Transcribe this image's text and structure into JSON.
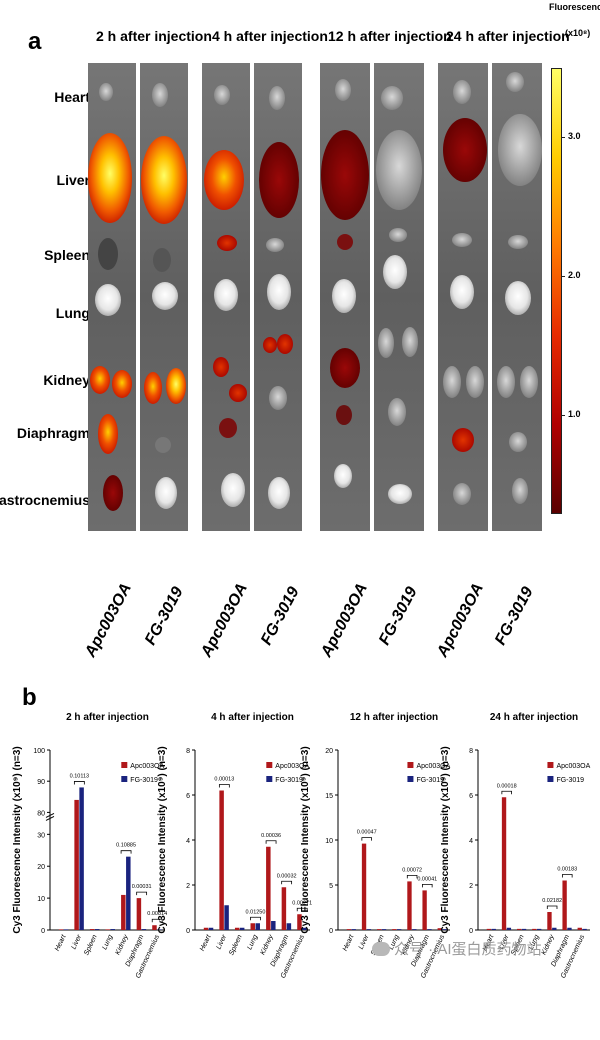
{
  "panel_a": {
    "letter": "a",
    "time_points": [
      "2 h after injection",
      "4 h after injection",
      "12 h after injection",
      "24 h after injection"
    ],
    "organs": [
      "Heart",
      "Liver",
      "Spleen",
      "Lung",
      "Kidney",
      "Diaphragm",
      "Gastrocnemius"
    ],
    "groups": [
      "Apc003OA",
      "FG-3019",
      "Apc003OA",
      "FG-3019",
      "Apc003OA",
      "FG-3019",
      "Apc003OA",
      "FG-3019"
    ],
    "colorbar": {
      "title": "Fluorescence",
      "unit": "(x10⁸)",
      "ticks": [
        "3.0",
        "2.0",
        "1.0"
      ],
      "tick_values": [
        3.0,
        2.0,
        1.0
      ],
      "range": [
        0.3,
        3.5
      ],
      "colors": [
        "#ffff66",
        "#ffcc00",
        "#ff7a00",
        "#e62a00",
        "#b00000",
        "#5a0000"
      ]
    }
  },
  "panel_b": {
    "letter": "b",
    "ylabel": "Cy3 Fluorescence Intensity (x10⁹) (n=3)",
    "legend": [
      "Apc003OA",
      "FG-3019"
    ],
    "series_colors": {
      "Apc003OA": "#b0181b",
      "FG-3019": "#1a237e"
    },
    "categories": [
      "Heart",
      "Liver",
      "Spleen",
      "Lung",
      "Kidney",
      "Diaphragm",
      "Gastrocnemius"
    ]
  },
  "chart_data": [
    {
      "type": "bar",
      "title": "2 h after injection",
      "ylabel": "Cy3 Fluorescence Intensity (x10⁹) (n=3)",
      "categories": [
        "Heart",
        "Liver",
        "Spleen",
        "Lung",
        "Kidney",
        "Diaphragm",
        "Gastrocnemius"
      ],
      "series": [
        {
          "name": "Apc003OA",
          "values": [
            0.2,
            84,
            0.3,
            0.2,
            11,
            10,
            1.5
          ]
        },
        {
          "name": "FG-3019",
          "values": [
            0.2,
            88,
            0.3,
            0.3,
            23,
            0.3,
            0.2
          ]
        }
      ],
      "ylim": [
        0,
        100
      ],
      "axis_break": [
        35,
        80
      ],
      "yticks": [
        0,
        10,
        20,
        30,
        80,
        90,
        100
      ],
      "annotations": [
        {
          "category": "Liver",
          "text": "0.10113"
        },
        {
          "category": "Kidney",
          "text": "0.10885"
        },
        {
          "category": "Diaphragm",
          "text": "0.00031"
        },
        {
          "category": "Gastrocnemius",
          "text": "0.00814"
        }
      ]
    },
    {
      "type": "bar",
      "title": "4 h after injection",
      "ylabel": "Cy3 Fluorescence Intensity (x10⁹) (n=3)",
      "categories": [
        "Heart",
        "Liver",
        "Spleen",
        "Lung",
        "Kidney",
        "Diaphragm",
        "Gastrocnemius"
      ],
      "series": [
        {
          "name": "Apc003OA",
          "values": [
            0.1,
            6.2,
            0.1,
            0.3,
            3.7,
            1.9,
            0.7
          ]
        },
        {
          "name": "FG-3019",
          "values": [
            0.1,
            1.1,
            0.1,
            0.3,
            0.4,
            0.3,
            0.1
          ]
        }
      ],
      "ylim": [
        0,
        8
      ],
      "yticks": [
        0,
        2,
        4,
        6,
        8
      ],
      "annotations": [
        {
          "category": "Liver",
          "text": "0.00013"
        },
        {
          "category": "Lung",
          "text": "0.01250"
        },
        {
          "category": "Kidney",
          "text": "0.00036"
        },
        {
          "category": "Diaphragm",
          "text": "0.00032"
        },
        {
          "category": "Gastrocnemius",
          "text": "0.00271"
        }
      ]
    },
    {
      "type": "bar",
      "title": "12 h after injection",
      "ylabel": "Cy3 Fluorescence Intensity (x10⁹) (n=3)",
      "categories": [
        "Heart",
        "Liver",
        "Spleen",
        "Lung",
        "Kidney",
        "Diaphragm",
        "Gastrocnemius"
      ],
      "series": [
        {
          "name": "Apc003OA",
          "values": [
            0.1,
            9.6,
            0.1,
            0.1,
            5.4,
            4.4,
            0.2
          ]
        },
        {
          "name": "FG-3019",
          "values": [
            0.1,
            0.1,
            0.1,
            0.1,
            0.1,
            0.1,
            0.1
          ]
        }
      ],
      "ylim": [
        0,
        20
      ],
      "yticks": [
        0,
        5,
        10,
        15,
        20
      ],
      "annotations": [
        {
          "category": "Liver",
          "text": "0.00047"
        },
        {
          "category": "Kidney",
          "text": "0.00072"
        },
        {
          "category": "Diaphragm",
          "text": "0.00041"
        }
      ]
    },
    {
      "type": "bar",
      "title": "24 h after injection",
      "ylabel": "Cy3 Fluorescence Intensity (x10⁹) (n=3)",
      "categories": [
        "Heart",
        "Liver",
        "Spleen",
        "Lung",
        "Kidney",
        "Diaphragm",
        "Gastrocnemius"
      ],
      "series": [
        {
          "name": "Apc003OA",
          "values": [
            0.05,
            5.9,
            0.05,
            0.05,
            0.8,
            2.2,
            0.1
          ]
        },
        {
          "name": "FG-3019",
          "values": [
            0.05,
            0.1,
            0.05,
            0.05,
            0.1,
            0.1,
            0.05
          ]
        }
      ],
      "ylim": [
        0,
        8
      ],
      "yticks": [
        0,
        2,
        4,
        6,
        8
      ],
      "annotations": [
        {
          "category": "Liver",
          "text": "0.00018"
        },
        {
          "category": "Kidney",
          "text": "0.02182"
        },
        {
          "category": "Diaphragm",
          "text": "0.00183"
        }
      ]
    }
  ],
  "watermark": "众号 · AI蛋白质药物站"
}
